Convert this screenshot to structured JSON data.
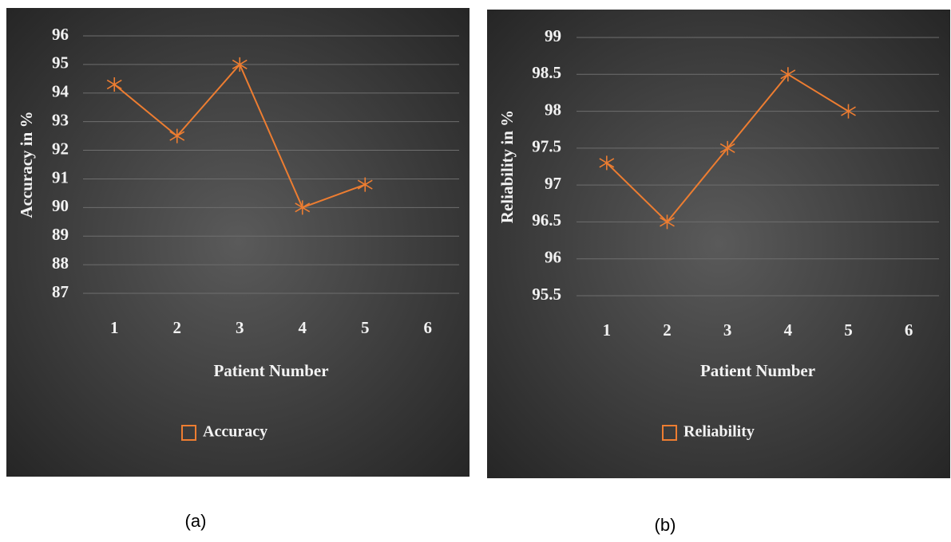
{
  "chart_data": [
    {
      "type": "line",
      "caption": "(a)",
      "y_label": "Accuracy in %",
      "x_label": "Patient Number",
      "categories": [
        "1",
        "2",
        "3",
        "4",
        "5",
        "6"
      ],
      "series": [
        {
          "name": "Accuracy",
          "color": "#ed7d31",
          "values": [
            94.3,
            92.5,
            95,
            90,
            90.8,
            null
          ]
        }
      ],
      "ylim": [
        87,
        96
      ],
      "yticks": [
        87,
        88,
        89,
        90,
        91,
        92,
        93,
        94,
        95,
        96
      ],
      "grid": true
    },
    {
      "type": "line",
      "caption": "(b)",
      "y_label": "Reliability in %",
      "x_label": "Patient Number",
      "categories": [
        "1",
        "2",
        "3",
        "4",
        "5",
        "6"
      ],
      "series": [
        {
          "name": "Reliability",
          "color": "#ed7d31",
          "values": [
            97.3,
            96.5,
            97.5,
            98.5,
            98,
            null
          ]
        }
      ],
      "ylim": [
        95.5,
        99
      ],
      "yticks": [
        95.5,
        96,
        96.5,
        97,
        97.5,
        98,
        98.5,
        99
      ],
      "grid": true
    }
  ]
}
